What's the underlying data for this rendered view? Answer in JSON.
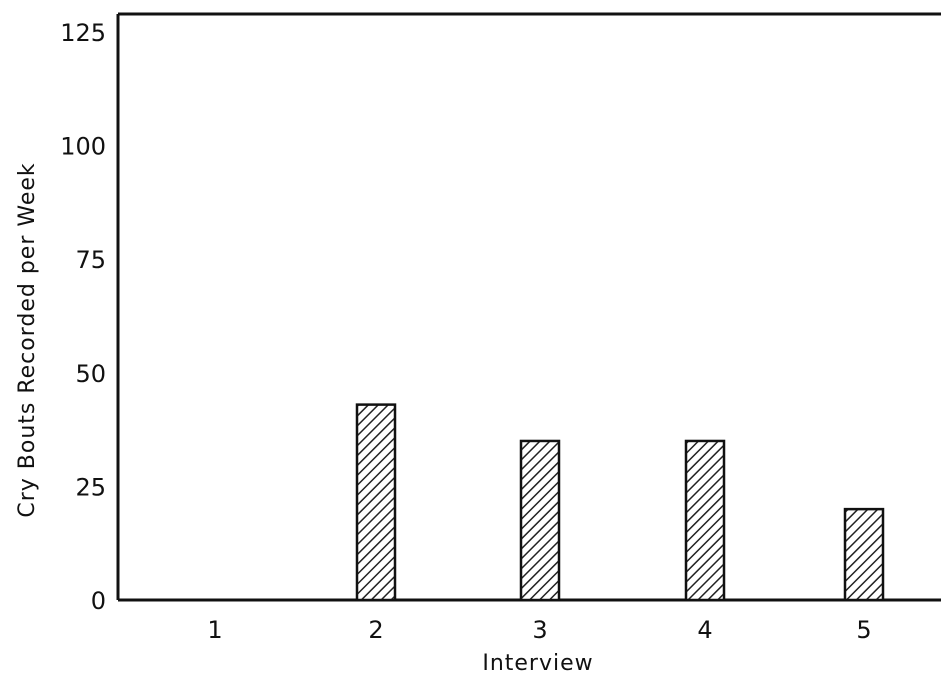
{
  "chart_data": {
    "type": "bar",
    "title": "",
    "xlabel": "Interview",
    "ylabel": "Cry Bouts Recorded per Week",
    "categories": [
      "1",
      "2",
      "3",
      "4",
      "5"
    ],
    "values": [
      0,
      43,
      35,
      35,
      20
    ],
    "ylim": [
      0,
      125
    ],
    "yticks": [
      "0",
      "25",
      "50",
      "75",
      "100",
      "125"
    ],
    "grid": false,
    "legend": "none",
    "bar_fill": "hatched",
    "colors": {
      "axis": "#111111",
      "bar_stroke": "#111111",
      "hatch": "#222222",
      "background": "#ffffff"
    }
  }
}
